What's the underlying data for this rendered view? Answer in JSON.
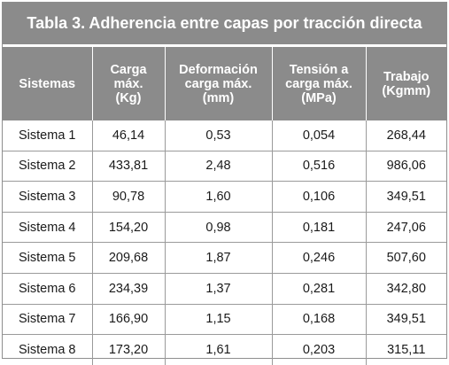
{
  "table": {
    "caption": "Tabla 3. Adherencia entre capas por tracción directa",
    "headers": [
      [
        "Sistemas"
      ],
      [
        "Carga",
        "máx.",
        "(Kg)"
      ],
      [
        "Deformación",
        "carga máx.",
        "(mm)"
      ],
      [
        "Tensión a",
        "carga máx.",
        "(MPa)"
      ],
      [
        "Trabajo",
        "(Kgmm)"
      ]
    ],
    "rows": [
      [
        "Sistema 1",
        "46,14",
        "0,53",
        "0,054",
        "268,44"
      ],
      [
        "Sistema 2",
        "433,81",
        "2,48",
        "0,516",
        "986,06"
      ],
      [
        "Sistema 3",
        "90,78",
        "1,60",
        "0,106",
        "349,51"
      ],
      [
        "Sistema 4",
        "154,20",
        "0,98",
        "0,181",
        "247,06"
      ],
      [
        "Sistema 5",
        "209,68",
        "1,87",
        "0,246",
        "507,60"
      ],
      [
        "Sistema 6",
        "234,39",
        "1,37",
        "0,281",
        "342,80"
      ],
      [
        "Sistema 7",
        "166,90",
        "1,15",
        "0,168",
        "349,51"
      ],
      [
        "Sistema 8",
        "173,20",
        "1,61",
        "0,203",
        "315,11"
      ]
    ]
  },
  "colors": {
    "header_bg": "#8b8b8b",
    "header_text": "#ffffff",
    "grid_line": "#9a9a9a"
  }
}
